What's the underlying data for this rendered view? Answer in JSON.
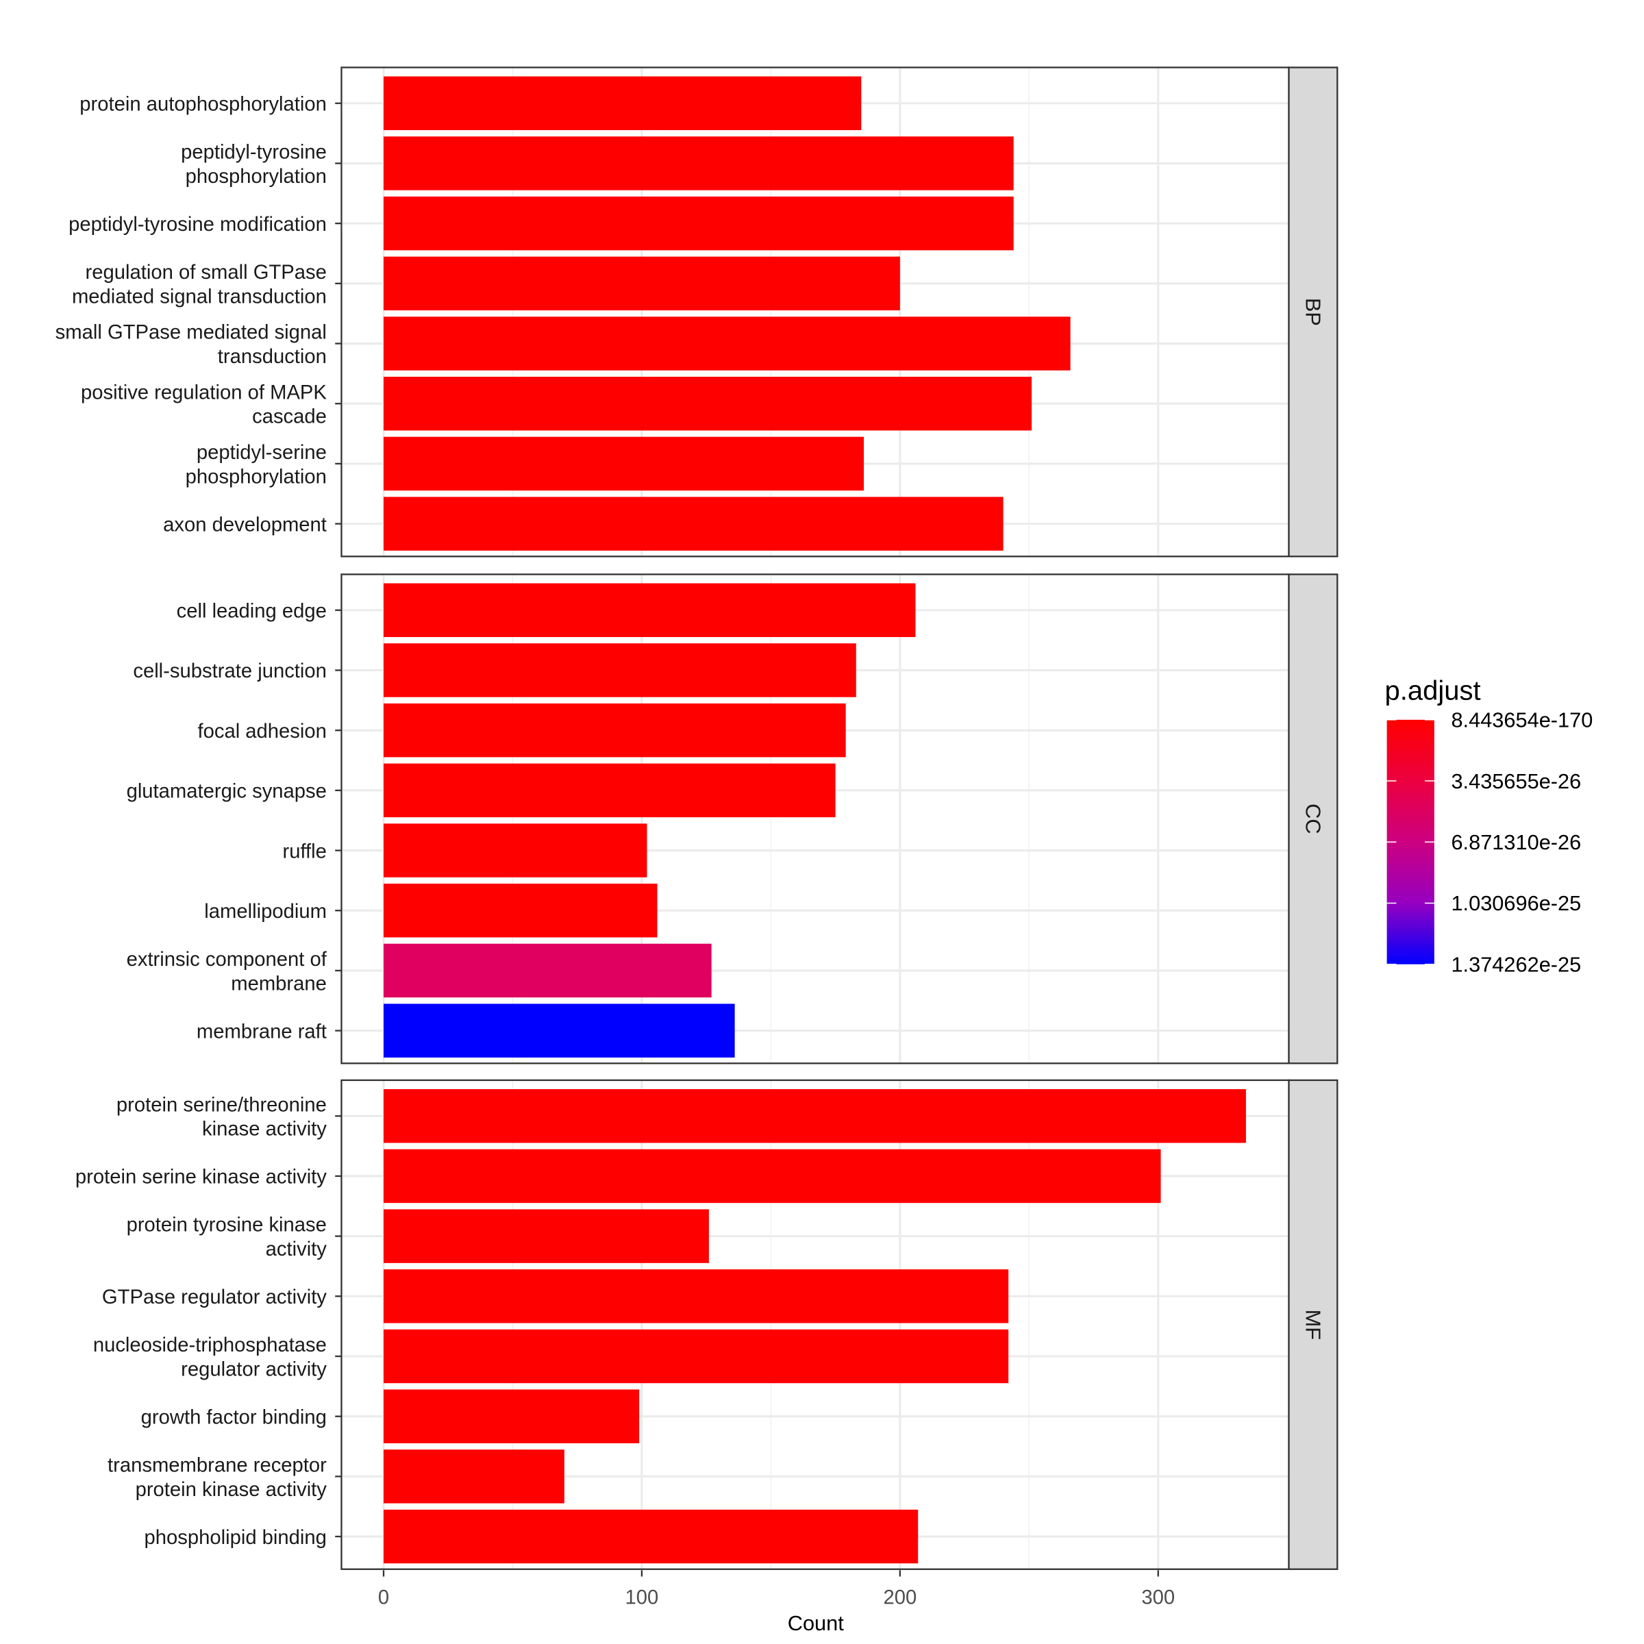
{
  "chart_data": {
    "type": "bar",
    "orientation": "horizontal",
    "xlabel": "Count",
    "xlim": [
      -16,
      350
    ],
    "xticks": [
      0,
      100,
      200,
      300
    ],
    "grid": true,
    "legend": {
      "title": "p.adjust",
      "placement": "right",
      "type": "colorbar",
      "low_color": "#FF0000",
      "high_color": "#0000FF",
      "labels": [
        "8.443654e-170",
        "3.435655e-26",
        "6.871310e-26",
        "1.030696e-25",
        "1.374262e-25"
      ]
    },
    "facets": [
      {
        "name": "BP",
        "bars": [
          {
            "label": [
              "protein autophosphorylation"
            ],
            "value": 185,
            "color": "#FF0000"
          },
          {
            "label": [
              "peptidyl-tyrosine",
              "phosphorylation"
            ],
            "value": 244,
            "color": "#FF0000"
          },
          {
            "label": [
              "peptidyl-tyrosine modification"
            ],
            "value": 244,
            "color": "#FF0000"
          },
          {
            "label": [
              "regulation of small GTPase",
              "mediated signal transduction"
            ],
            "value": 200,
            "color": "#FF0000"
          },
          {
            "label": [
              "small GTPase mediated signal",
              "transduction"
            ],
            "value": 266,
            "color": "#FF0000"
          },
          {
            "label": [
              "positive regulation of MAPK",
              "cascade"
            ],
            "value": 251,
            "color": "#FF0000"
          },
          {
            "label": [
              "peptidyl-serine",
              "phosphorylation"
            ],
            "value": 186,
            "color": "#FF0000"
          },
          {
            "label": [
              "axon development"
            ],
            "value": 240,
            "color": "#FF0000"
          }
        ]
      },
      {
        "name": "CC",
        "bars": [
          {
            "label": [
              "cell leading edge"
            ],
            "value": 206,
            "color": "#FF0000"
          },
          {
            "label": [
              "cell-substrate junction"
            ],
            "value": 183,
            "color": "#FF0000"
          },
          {
            "label": [
              "focal adhesion"
            ],
            "value": 179,
            "color": "#FF0000"
          },
          {
            "label": [
              "glutamatergic synapse"
            ],
            "value": 175,
            "color": "#FF0000"
          },
          {
            "label": [
              "ruffle"
            ],
            "value": 102,
            "color": "#FF0000"
          },
          {
            "label": [
              "lamellipodium"
            ],
            "value": 106,
            "color": "#FF0000"
          },
          {
            "label": [
              "extrinsic component of",
              "membrane"
            ],
            "value": 127,
            "color": "#E0005F"
          },
          {
            "label": [
              "membrane raft"
            ],
            "value": 136,
            "color": "#0000FF"
          }
        ]
      },
      {
        "name": "MF",
        "bars": [
          {
            "label": [
              "protein serine/threonine",
              "kinase activity"
            ],
            "value": 334,
            "color": "#FF0000"
          },
          {
            "label": [
              "protein serine kinase activity"
            ],
            "value": 301,
            "color": "#FF0000"
          },
          {
            "label": [
              "protein tyrosine kinase",
              "activity"
            ],
            "value": 126,
            "color": "#FF0000"
          },
          {
            "label": [
              "GTPase regulator activity"
            ],
            "value": 242,
            "color": "#FF0000"
          },
          {
            "label": [
              "nucleoside-triphosphatase",
              "regulator activity"
            ],
            "value": 242,
            "color": "#FF0000"
          },
          {
            "label": [
              "growth factor binding"
            ],
            "value": 99,
            "color": "#FF0000"
          },
          {
            "label": [
              "transmembrane receptor",
              "protein kinase activity"
            ],
            "value": 70,
            "color": "#FF0000"
          },
          {
            "label": [
              "phospholipid binding"
            ],
            "value": 207,
            "color": "#FF0000"
          }
        ]
      }
    ]
  }
}
